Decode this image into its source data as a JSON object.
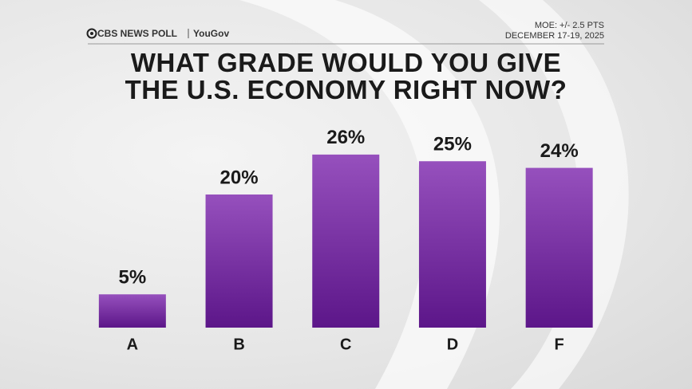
{
  "header": {
    "brand": "CBS NEWS POLL",
    "partner": "YouGov",
    "moe": "MOE: +/- 2.5 PTS",
    "dates": "DECEMBER 17-19, 2025"
  },
  "chart_data": {
    "type": "bar",
    "title": "WHAT GRADE WOULD YOU GIVE THE U.S. ECONOMY RIGHT NOW?",
    "categories": [
      "A",
      "B",
      "C",
      "D",
      "F"
    ],
    "values": [
      5,
      20,
      26,
      25,
      24
    ],
    "value_labels": [
      "5%",
      "20%",
      "26%",
      "25%",
      "24%"
    ],
    "color": "#7a35a8"
  }
}
